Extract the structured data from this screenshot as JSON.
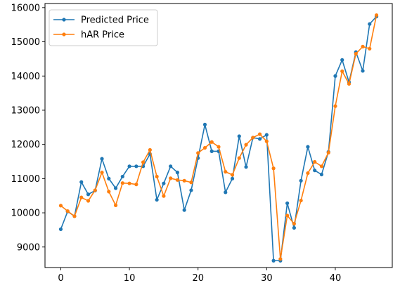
{
  "chart_data": {
    "type": "line",
    "title": "",
    "xlabel": "",
    "ylabel": "",
    "xlim": [
      -2.3,
      48.3
    ],
    "ylim": [
      8400,
      16120
    ],
    "grid": false,
    "legend_position": "upper-left",
    "x_ticks": [
      0,
      10,
      20,
      30,
      40
    ],
    "y_ticks": [
      9000,
      10000,
      11000,
      12000,
      13000,
      14000,
      15000,
      16000
    ],
    "x_tick_labels": [
      "0",
      "10",
      "20",
      "30",
      "40"
    ],
    "y_tick_labels": [
      "9000",
      "10000",
      "11000",
      "12000",
      "13000",
      "14000",
      "15000",
      "16000"
    ],
    "x": [
      0,
      1,
      2,
      3,
      4,
      5,
      6,
      7,
      8,
      9,
      10,
      11,
      12,
      13,
      14,
      15,
      16,
      17,
      18,
      19,
      20,
      21,
      22,
      23,
      24,
      25,
      26,
      27,
      28,
      29,
      30,
      31,
      32,
      33,
      34,
      35,
      36,
      37,
      38,
      39,
      40,
      41,
      42,
      43,
      44,
      45,
      46
    ],
    "series": [
      {
        "name": "Predicted Price",
        "color": "#1f77b4",
        "values": [
          9520,
          10040,
          9900,
          10900,
          10540,
          10650,
          11580,
          11000,
          10720,
          11060,
          11360,
          11360,
          11360,
          11720,
          10380,
          10860,
          11360,
          11180,
          10080,
          10660,
          11600,
          12580,
          11800,
          11800,
          10600,
          11000,
          12240,
          11340,
          12200,
          12160,
          12280,
          8600,
          8600,
          10280,
          9560,
          10940,
          11930,
          11240,
          11120,
          11780,
          14000,
          14470,
          13820,
          14700,
          14150,
          15520,
          15740
        ],
        "marker": "circle"
      },
      {
        "name": "hAR Price",
        "color": "#ff7f0e",
        "values": [
          10210,
          10050,
          9900,
          10450,
          10350,
          10660,
          11180,
          10620,
          10220,
          10870,
          10860,
          10830,
          11480,
          11840,
          11060,
          10490,
          11010,
          10960,
          10940,
          10890,
          11750,
          11900,
          12070,
          11930,
          11200,
          11110,
          11600,
          11990,
          12200,
          12300,
          12090,
          11300,
          8650,
          9920,
          9680,
          10360,
          11160,
          11490,
          11360,
          11760,
          13120,
          14140,
          13770,
          14650,
          14860,
          14800,
          15780
        ],
        "marker": "circle"
      }
    ]
  }
}
